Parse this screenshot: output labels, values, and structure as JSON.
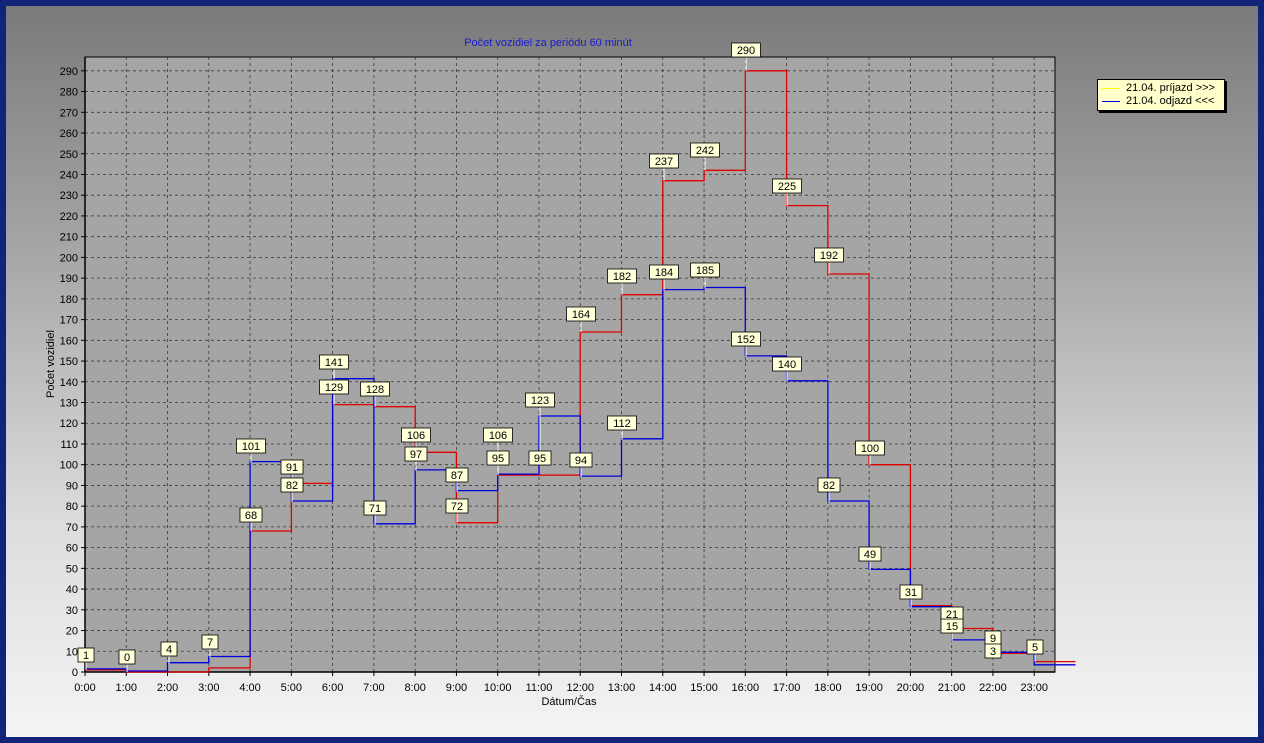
{
  "chart_data": {
    "type": "line",
    "step": true,
    "title": "Počet vozidiel za periódu 60 minút",
    "xlabel": "Dátum/Čas",
    "ylabel": "Počet vozidiel",
    "ylim": [
      0,
      295
    ],
    "yticks": [
      0,
      10,
      20,
      30,
      40,
      50,
      60,
      70,
      80,
      90,
      100,
      110,
      120,
      130,
      140,
      150,
      160,
      170,
      180,
      190,
      200,
      210,
      220,
      230,
      240,
      250,
      260,
      270,
      280,
      290
    ],
    "categories": [
      "0:00",
      "1:00",
      "2:00",
      "3:00",
      "4:00",
      "5:00",
      "6:00",
      "7:00",
      "8:00",
      "9:00",
      "10:00",
      "11:00",
      "12:00",
      "13:00",
      "14:00",
      "15:00",
      "16:00",
      "17:00",
      "18:00",
      "19:00",
      "20:00",
      "21:00",
      "22:00",
      "23:00"
    ],
    "grid": true,
    "legend_position": "top-right",
    "series": [
      {
        "name": "21.04.  príjazd >>>",
        "color": "#e00000",
        "legend_color": "#ffff00",
        "values": [
          1,
          0,
          0,
          2,
          68,
          91,
          129,
          128,
          106,
          72,
          95,
          95,
          164,
          182,
          237,
          242,
          290,
          225,
          192,
          100,
          32,
          21,
          9,
          5
        ]
      },
      {
        "name": "21.04.  odjazd <<<",
        "color": "#0000dd",
        "legend_color": "#0000dd",
        "values": [
          1,
          0,
          4,
          7,
          101,
          82,
          141,
          71,
          97,
          87,
          95,
          123,
          94,
          112,
          184,
          185,
          152,
          140,
          82,
          49,
          31,
          15,
          9,
          3
        ]
      }
    ],
    "data_labels": [
      "1",
      "0",
      "4",
      "7",
      "101",
      "91",
      "82",
      "68",
      "141",
      "129",
      "128",
      "71",
      "106",
      "97",
      "87",
      "72",
      "106",
      "95",
      "95",
      "123",
      "164",
      "94",
      "182",
      "112",
      "237",
      "184",
      "242",
      "185",
      "290",
      "152",
      "225",
      "140",
      "192",
      "82",
      "100",
      "49",
      "31",
      "21",
      "15",
      "9",
      "3",
      "5"
    ]
  }
}
